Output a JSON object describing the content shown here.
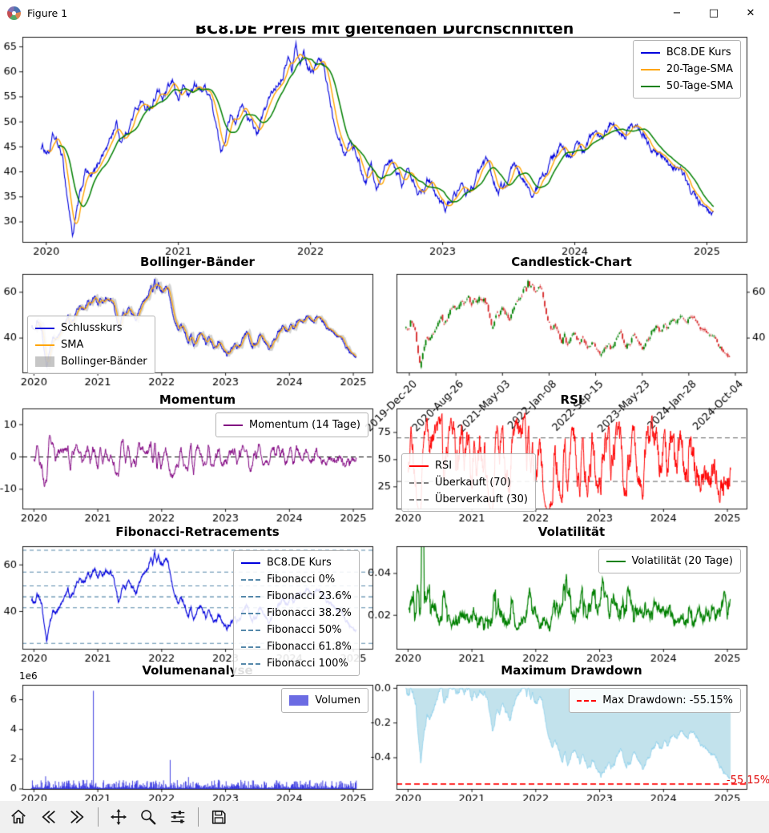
{
  "window": {
    "title": "Figure 1",
    "controls": {
      "minimize": "−",
      "maximize": "□",
      "close": "✕"
    }
  },
  "toolbar": {
    "buttons": [
      "home",
      "back",
      "forward",
      "pan",
      "zoom",
      "configure-subplots",
      "save"
    ]
  },
  "chart_data": {
    "price_anchors": [
      [
        2019.96,
        45.0
      ],
      [
        2020.02,
        44.0
      ],
      [
        2020.05,
        46.8
      ],
      [
        2020.08,
        45.5
      ],
      [
        2020.12,
        43.0
      ],
      [
        2020.16,
        35.0
      ],
      [
        2020.2,
        27.5
      ],
      [
        2020.24,
        33.0
      ],
      [
        2020.27,
        36.5
      ],
      [
        2020.3,
        40.5
      ],
      [
        2020.34,
        38.5
      ],
      [
        2020.38,
        40.0
      ],
      [
        2020.42,
        43.5
      ],
      [
        2020.46,
        45.0
      ],
      [
        2020.5,
        47.5
      ],
      [
        2020.53,
        50.0
      ],
      [
        2020.56,
        46.5
      ],
      [
        2020.6,
        47.5
      ],
      [
        2020.64,
        50.0
      ],
      [
        2020.68,
        52.5
      ],
      [
        2020.72,
        54.5
      ],
      [
        2020.76,
        52.0
      ],
      [
        2020.8,
        53.5
      ],
      [
        2020.84,
        56.5
      ],
      [
        2020.88,
        54.5
      ],
      [
        2020.92,
        56.0
      ],
      [
        2020.96,
        57.5
      ],
      [
        2021.0,
        54.5
      ],
      [
        2021.04,
        57.0
      ],
      [
        2021.08,
        55.0
      ],
      [
        2021.12,
        57.5
      ],
      [
        2021.16,
        56.0
      ],
      [
        2021.2,
        57.0
      ],
      [
        2021.24,
        55.5
      ],
      [
        2021.28,
        50.0
      ],
      [
        2021.32,
        43.5
      ],
      [
        2021.36,
        48.0
      ],
      [
        2021.4,
        52.0
      ],
      [
        2021.44,
        50.5
      ],
      [
        2021.48,
        53.0
      ],
      [
        2021.52,
        51.5
      ],
      [
        2021.56,
        49.0
      ],
      [
        2021.6,
        47.5
      ],
      [
        2021.64,
        51.0
      ],
      [
        2021.68,
        54.0
      ],
      [
        2021.72,
        56.0
      ],
      [
        2021.76,
        58.5
      ],
      [
        2021.8,
        60.5
      ],
      [
        2021.83,
        63.5
      ],
      [
        2021.86,
        60.0
      ],
      [
        2021.89,
        66.0
      ],
      [
        2021.92,
        61.5
      ],
      [
        2021.95,
        64.0
      ],
      [
        2021.98,
        61.0
      ],
      [
        2022.02,
        60.0
      ],
      [
        2022.06,
        62.0
      ],
      [
        2022.1,
        60.5
      ],
      [
        2022.14,
        55.5
      ],
      [
        2022.18,
        50.5
      ],
      [
        2022.22,
        48.0
      ],
      [
        2022.26,
        44.0
      ],
      [
        2022.3,
        47.0
      ],
      [
        2022.34,
        44.5
      ],
      [
        2022.38,
        41.0
      ],
      [
        2022.42,
        38.5
      ],
      [
        2022.46,
        42.0
      ],
      [
        2022.5,
        37.5
      ],
      [
        2022.54,
        40.0
      ],
      [
        2022.58,
        43.0
      ],
      [
        2022.62,
        41.5
      ],
      [
        2022.66,
        39.0
      ],
      [
        2022.7,
        37.5
      ],
      [
        2022.74,
        41.0
      ],
      [
        2022.78,
        39.5
      ],
      [
        2022.82,
        36.5
      ],
      [
        2022.86,
        37.5
      ],
      [
        2022.9,
        39.0
      ],
      [
        2022.94,
        37.0
      ],
      [
        2022.98,
        34.0
      ],
      [
        2023.02,
        33.0
      ],
      [
        2023.06,
        34.5
      ],
      [
        2023.1,
        36.0
      ],
      [
        2023.14,
        37.0
      ],
      [
        2023.18,
        35.5
      ],
      [
        2023.22,
        37.0
      ],
      [
        2023.26,
        38.5
      ],
      [
        2023.3,
        40.5
      ],
      [
        2023.34,
        41.5
      ],
      [
        2023.38,
        38.5
      ],
      [
        2023.42,
        36.5
      ],
      [
        2023.46,
        37.0
      ],
      [
        2023.5,
        38.0
      ],
      [
        2023.54,
        40.5
      ],
      [
        2023.58,
        39.5
      ],
      [
        2023.62,
        37.5
      ],
      [
        2023.66,
        36.0
      ],
      [
        2023.7,
        35.5
      ],
      [
        2023.74,
        38.0
      ],
      [
        2023.78,
        40.5
      ],
      [
        2023.82,
        42.0
      ],
      [
        2023.86,
        43.5
      ],
      [
        2023.9,
        45.0
      ],
      [
        2023.94,
        43.5
      ],
      [
        2023.98,
        44.5
      ],
      [
        2024.02,
        45.5
      ],
      [
        2024.06,
        44.0
      ],
      [
        2024.1,
        46.0
      ],
      [
        2024.14,
        47.5
      ],
      [
        2024.18,
        46.5
      ],
      [
        2024.22,
        48.0
      ],
      [
        2024.26,
        49.5
      ],
      [
        2024.3,
        50.0
      ],
      [
        2024.34,
        49.0
      ],
      [
        2024.38,
        48.0
      ],
      [
        2024.42,
        49.5
      ],
      [
        2024.46,
        48.5
      ],
      [
        2024.5,
        47.5
      ],
      [
        2024.54,
        46.5
      ],
      [
        2024.58,
        45.0
      ],
      [
        2024.62,
        44.0
      ],
      [
        2024.66,
        42.5
      ],
      [
        2024.7,
        41.5
      ],
      [
        2024.74,
        40.0
      ],
      [
        2024.78,
        41.0
      ],
      [
        2024.82,
        39.0
      ],
      [
        2024.86,
        37.5
      ],
      [
        2024.9,
        35.5
      ],
      [
        2024.94,
        34.0
      ],
      [
        2024.98,
        32.5
      ],
      [
        2025.02,
        31.0
      ],
      [
        2025.05,
        30.5
      ]
    ],
    "main": {
      "type": "line",
      "title": "BC8.DE Preis mit gleitenden Durchschnitten",
      "xlim": [
        2019.82,
        2025.3
      ],
      "ylim": [
        26,
        67
      ],
      "xticks": [
        [
          2020,
          "2020"
        ],
        [
          2021,
          "2021"
        ],
        [
          2022,
          "2022"
        ],
        [
          2023,
          "2023"
        ],
        [
          2024,
          "2024"
        ],
        [
          2025,
          "2025"
        ]
      ],
      "yticks": [
        [
          30,
          "30"
        ],
        [
          35,
          "35"
        ],
        [
          40,
          "40"
        ],
        [
          45,
          "45"
        ],
        [
          50,
          "50"
        ],
        [
          55,
          "55"
        ],
        [
          60,
          "60"
        ],
        [
          65,
          "65"
        ]
      ],
      "legend": [
        {
          "label": "BC8.DE Kurs",
          "color": "#0000dd",
          "style": "line"
        },
        {
          "label": "20-Tage-SMA",
          "color": "#ffa500",
          "style": "line"
        },
        {
          "label": "50-Tage-SMA",
          "color": "#008000",
          "style": "line"
        }
      ]
    },
    "bollinger": {
      "type": "line",
      "title": "Bollinger-Bänder",
      "xlim": [
        2019.82,
        2025.3
      ],
      "ylim": [
        25,
        68
      ],
      "xticks": [
        [
          2020,
          "2020"
        ],
        [
          2021,
          "2021"
        ],
        [
          2022,
          "2022"
        ],
        [
          2023,
          "2023"
        ],
        [
          2024,
          "2024"
        ],
        [
          2025,
          "2025"
        ]
      ],
      "yticks": [
        [
          40,
          "40"
        ],
        [
          60,
          "60"
        ]
      ],
      "band_color": "rgba(128,128,128,0.35)",
      "legend": [
        {
          "label": "Schlusskurs",
          "color": "#0000dd",
          "style": "line"
        },
        {
          "label": "SMA",
          "color": "#ffa500",
          "style": "line"
        },
        {
          "label": "Bollinger-Bänder",
          "color": "rgba(128,128,128,0.45)",
          "style": "patch"
        }
      ]
    },
    "candlestick": {
      "type": "candlestick",
      "title": "Candlestick-Chart",
      "xlim": [
        2019.82,
        2025.3
      ],
      "ylim": [
        25,
        68
      ],
      "yticks": [
        [
          40,
          "40"
        ],
        [
          60,
          "60"
        ]
      ],
      "xtick_labels": [
        "2019-Dec-20",
        "2020-Aug-26",
        "2021-May-03",
        "2022-Jan-08",
        "2022-Sep-15",
        "2023-May-23",
        "2024-Jan-28",
        "2024-Oct-04"
      ],
      "up_color": "#008000",
      "down_color": "#d62728"
    },
    "momentum": {
      "type": "line",
      "title": "Momentum",
      "xlim": [
        2019.82,
        2025.3
      ],
      "ylim": [
        -16,
        15
      ],
      "xticks": [
        [
          2020,
          "2020"
        ],
        [
          2021,
          "2021"
        ],
        [
          2022,
          "2022"
        ],
        [
          2023,
          "2023"
        ],
        [
          2024,
          "2024"
        ],
        [
          2025,
          "2025"
        ]
      ],
      "yticks": [
        [
          -10,
          "-10"
        ],
        [
          0,
          "0"
        ],
        [
          10,
          "10"
        ]
      ],
      "hlines": [
        {
          "y": 0,
          "color": "#000000",
          "dash": [
            6,
            4
          ]
        }
      ],
      "legend": [
        {
          "label": "Momentum (14 Tage)",
          "color": "#800080",
          "style": "line"
        }
      ]
    },
    "rsi": {
      "type": "line",
      "title": "RSI",
      "xlim": [
        2019.82,
        2025.3
      ],
      "ylim": [
        5,
        97
      ],
      "xticks": [
        [
          2020,
          "2020"
        ],
        [
          2021,
          "2021"
        ],
        [
          2022,
          "2022"
        ],
        [
          2023,
          "2023"
        ],
        [
          2024,
          "2024"
        ],
        [
          2025,
          "2025"
        ]
      ],
      "yticks": [
        [
          25,
          "25"
        ],
        [
          50,
          "50"
        ],
        [
          75,
          "75"
        ]
      ],
      "hlines": [
        {
          "y": 70,
          "color": "#808080",
          "dash": [
            6,
            4
          ]
        },
        {
          "y": 30,
          "color": "#808080",
          "dash": [
            6,
            4
          ]
        }
      ],
      "legend": [
        {
          "label": "RSI",
          "color": "#ff0000",
          "style": "line"
        },
        {
          "label": "Überkauft (70)",
          "color": "#808080",
          "style": "dashed"
        },
        {
          "label": "Überverkauft (30)",
          "color": "#808080",
          "style": "dashed"
        }
      ]
    },
    "fibonacci": {
      "type": "line",
      "title": "Fibonacci-Retracements",
      "xlim": [
        2019.82,
        2025.3
      ],
      "ylim": [
        24,
        68
      ],
      "xticks": [
        [
          2020,
          "2020"
        ],
        [
          2021,
          "2021"
        ],
        [
          2022,
          "2022"
        ],
        [
          2023,
          "2023"
        ],
        [
          2024,
          "2024"
        ],
        [
          2025,
          "2025"
        ]
      ],
      "yticks": [
        [
          40,
          "40"
        ],
        [
          60,
          "60"
        ]
      ],
      "level_color": "#5588aa",
      "levels": [
        {
          "label": "Fibonacci 0%",
          "y": 66.3
        },
        {
          "label": "Fibonacci 23.6%",
          "y": 56.9
        },
        {
          "label": "Fibonacci 38.2%",
          "y": 51.0
        },
        {
          "label": "Fibonacci 50%",
          "y": 46.3
        },
        {
          "label": "Fibonacci 61.8%",
          "y": 41.6
        },
        {
          "label": "Fibonacci 100%",
          "y": 26.3
        }
      ],
      "legend": [
        {
          "label": "BC8.DE Kurs",
          "color": "#0000dd",
          "style": "line"
        },
        {
          "label": "Fibonacci 0%",
          "color": "#5588aa",
          "style": "dashed"
        },
        {
          "label": "Fibonacci 23.6%",
          "color": "#5588aa",
          "style": "dashed"
        },
        {
          "label": "Fibonacci 38.2%",
          "color": "#5588aa",
          "style": "dashed"
        },
        {
          "label": "Fibonacci 50%",
          "color": "#5588aa",
          "style": "dashed"
        },
        {
          "label": "Fibonacci 61.8%",
          "color": "#5588aa",
          "style": "dashed"
        },
        {
          "label": "Fibonacci 100%",
          "color": "#5588aa",
          "style": "dashed"
        }
      ]
    },
    "volatility": {
      "type": "line",
      "title": "Volatilität",
      "xlim": [
        2019.82,
        2025.3
      ],
      "ylim": [
        0.004,
        0.053
      ],
      "xticks": [
        [
          2020,
          "2020"
        ],
        [
          2021,
          "2021"
        ],
        [
          2022,
          "2022"
        ],
        [
          2023,
          "2023"
        ],
        [
          2024,
          "2024"
        ],
        [
          2025,
          "2025"
        ]
      ],
      "yticks": [
        [
          0.02,
          "0.02"
        ],
        [
          0.04,
          "0.04"
        ]
      ],
      "legend": [
        {
          "label": "Volatilität (20 Tage)",
          "color": "#008000",
          "style": "line"
        }
      ]
    },
    "volume": {
      "type": "bar",
      "title": "Volumenanalyse",
      "xlim": [
        2019.82,
        2025.3
      ],
      "ylim": [
        0,
        7000000
      ],
      "offset_label": "1e6",
      "xticks": [
        [
          2020,
          "2020"
        ],
        [
          2021,
          "2021"
        ],
        [
          2022,
          "2022"
        ],
        [
          2023,
          "2023"
        ],
        [
          2024,
          "2024"
        ],
        [
          2025,
          "2025"
        ]
      ],
      "yticks": [
        [
          0,
          "0"
        ],
        [
          2000000,
          "2"
        ],
        [
          4000000,
          "4"
        ],
        [
          6000000,
          "6"
        ]
      ],
      "bar_color": "#2222dd",
      "spikes": [
        [
          2020.18,
          0.85
        ],
        [
          2020.93,
          6.6
        ],
        [
          2022.13,
          1.95
        ],
        [
          2022.42,
          0.8
        ],
        [
          2022.9,
          0.6
        ],
        [
          2023.3,
          0.55
        ],
        [
          2024.5,
          0.45
        ]
      ],
      "legend": [
        {
          "label": "Volumen",
          "color": "rgba(70,70,220,0.8)",
          "style": "patch"
        }
      ]
    },
    "drawdown": {
      "type": "area",
      "title": "Maximum Drawdown",
      "xlim": [
        2019.82,
        2025.3
      ],
      "ylim": [
        -0.58,
        0.02
      ],
      "xticks": [
        [
          2020,
          "2020"
        ],
        [
          2021,
          "2021"
        ],
        [
          2022,
          "2022"
        ],
        [
          2023,
          "2023"
        ],
        [
          2024,
          "2024"
        ],
        [
          2025,
          "2025"
        ]
      ],
      "yticks": [
        [
          0,
          "0.0"
        ],
        [
          -0.2,
          "-0.2"
        ],
        [
          -0.4,
          "-0.4"
        ]
      ],
      "fill_color": "rgba(173,216,230,0.75)",
      "line_color": "rgba(135,206,235,0.95)",
      "max_drawdown": -0.5515,
      "hline_color": "#ff0000",
      "annotation": "-55.15%",
      "legend": [
        {
          "label": "Max Drawdown: -55.15%",
          "color": "#ff0000",
          "style": "dashed"
        }
      ]
    }
  }
}
